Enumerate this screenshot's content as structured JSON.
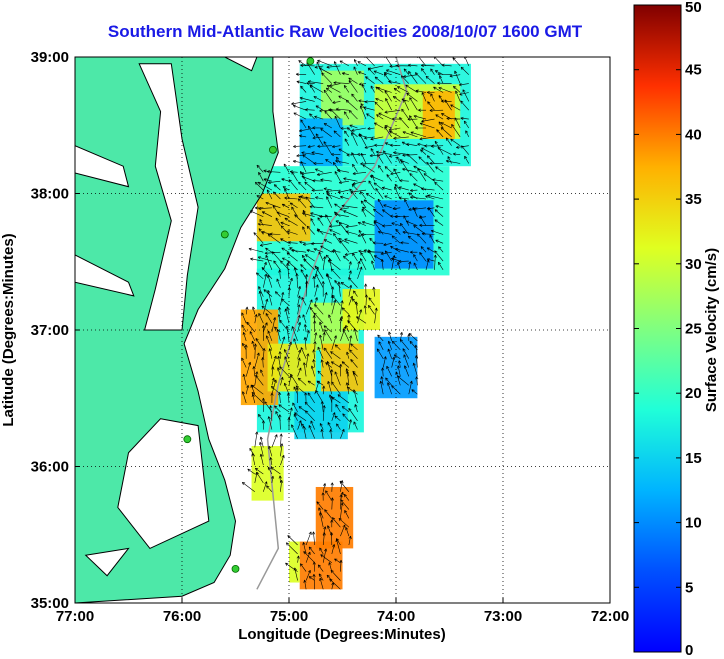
{
  "chart_data": {
    "type": "heatmap",
    "title": "Southern Mid-Atlantic Raw Velocities 2008/10/07 1600 GMT",
    "xlabel": "Longitude (Degrees:Minutes)",
    "ylabel": "Latitude (Degrees:Minutes)",
    "colorbar_label": "Surface Velocity (cm/s)",
    "xlim": [
      -77,
      -72
    ],
    "ylim": [
      35,
      39
    ],
    "x_ticks": [
      {
        "value": -77,
        "label": "77:00"
      },
      {
        "value": -76,
        "label": "76:00"
      },
      {
        "value": -75,
        "label": "75:00"
      },
      {
        "value": -74,
        "label": "74:00"
      },
      {
        "value": -73,
        "label": "73:00"
      },
      {
        "value": -72,
        "label": "72:00"
      }
    ],
    "y_ticks": [
      {
        "value": 35,
        "label": "35:00"
      },
      {
        "value": 36,
        "label": "36:00"
      },
      {
        "value": 37,
        "label": "37:00"
      },
      {
        "value": 38,
        "label": "38:00"
      },
      {
        "value": 39,
        "label": "39:00"
      }
    ],
    "colorbar_range": [
      0,
      50
    ],
    "colorbar_ticks": [
      0,
      5,
      10,
      15,
      20,
      25,
      30,
      35,
      40,
      45,
      50
    ],
    "grid": true,
    "colormap": "jet",
    "land_color": "#4de8a8",
    "coastline_color": "#000000",
    "bathymetry_color": "#999999",
    "arrow_color": "#000000",
    "site_color": "#33cc33",
    "velocity_regions": [
      {
        "lon": [
          -74.9,
          -73.3
        ],
        "lat": [
          38.2,
          38.95
        ],
        "value": 18
      },
      {
        "lon": [
          -74.2,
          -73.4
        ],
        "lat": [
          38.4,
          38.8
        ],
        "value": 30
      },
      {
        "lon": [
          -74.7,
          -74.3
        ],
        "lat": [
          38.5,
          38.9
        ],
        "value": 27
      },
      {
        "lon": [
          -73.75,
          -73.45
        ],
        "lat": [
          38.4,
          38.75
        ],
        "value": 37
      },
      {
        "lon": [
          -74.9,
          -74.5
        ],
        "lat": [
          38.2,
          38.55
        ],
        "value": 12
      },
      {
        "lon": [
          -75.3,
          -73.5
        ],
        "lat": [
          37.4,
          38.2
        ],
        "value": 19
      },
      {
        "lon": [
          -74.2,
          -73.65
        ],
        "lat": [
          37.45,
          37.95
        ],
        "value": 10
      },
      {
        "lon": [
          -75.3,
          -74.8
        ],
        "lat": [
          37.65,
          38.0
        ],
        "value": 36
      },
      {
        "lon": [
          -75.3,
          -74.3
        ],
        "lat": [
          36.25,
          37.45
        ],
        "value": 18
      },
      {
        "lon": [
          -74.8,
          -74.35
        ],
        "lat": [
          36.85,
          37.2
        ],
        "value": 28
      },
      {
        "lon": [
          -74.5,
          -74.15
        ],
        "lat": [
          37.0,
          37.3
        ],
        "value": 32
      },
      {
        "lon": [
          -74.2,
          -73.8
        ],
        "lat": [
          36.5,
          36.95
        ],
        "value": 11
      },
      {
        "lon": [
          -74.7,
          -74.3
        ],
        "lat": [
          36.55,
          36.9
        ],
        "value": 36
      },
      {
        "lon": [
          -75.45,
          -75.1
        ],
        "lat": [
          36.45,
          37.15
        ],
        "value": 38
      },
      {
        "lon": [
          -75.2,
          -74.75
        ],
        "lat": [
          36.55,
          36.9
        ],
        "value": 33
      },
      {
        "lon": [
          -74.95,
          -74.45
        ],
        "lat": [
          36.2,
          36.55
        ],
        "value": 15
      },
      {
        "lon": [
          -75.35,
          -75.05
        ],
        "lat": [
          35.75,
          36.15
        ],
        "value": 31
      },
      {
        "lon": [
          -74.75,
          -74.4
        ],
        "lat": [
          35.4,
          35.85
        ],
        "value": 40
      },
      {
        "lon": [
          -74.9,
          -74.5
        ],
        "lat": [
          35.1,
          35.45
        ],
        "value": 40
      },
      {
        "lon": [
          -75.0,
          -74.9
        ],
        "lat": [
          35.15,
          35.45
        ],
        "value": 31
      }
    ],
    "observation_sites": [
      {
        "lon": -74.8,
        "lat": 38.97
      },
      {
        "lon": -75.15,
        "lat": 38.32
      },
      {
        "lon": -75.6,
        "lat": 37.7
      },
      {
        "lon": -75.95,
        "lat": 36.2
      },
      {
        "lon": -75.5,
        "lat": 35.25
      }
    ]
  }
}
